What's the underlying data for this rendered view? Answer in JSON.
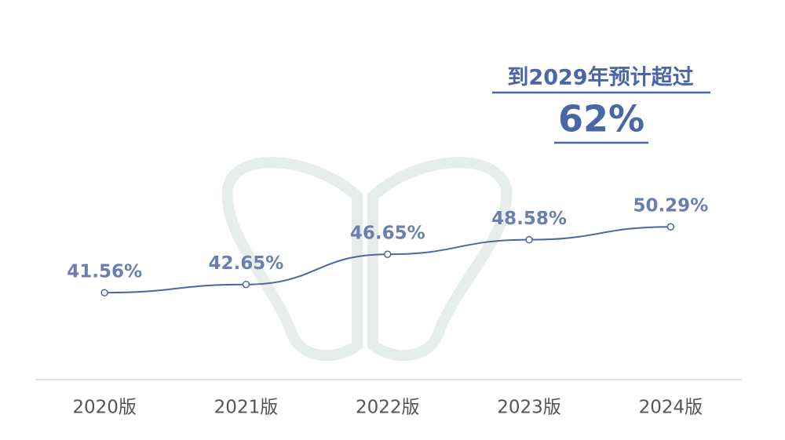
{
  "chart_data": {
    "type": "line",
    "annotation": {
      "text": "到2029年预计超过",
      "value_label": "62%"
    },
    "categories": [
      "2020版",
      "2021版",
      "2022版",
      "2023版",
      "2024版"
    ],
    "values": [
      41.56,
      42.65,
      46.65,
      48.58,
      50.29
    ],
    "value_labels": [
      "41.56%",
      "42.65%",
      "46.65%",
      "48.58%",
      "50.29%"
    ],
    "color": "#4a66a8"
  }
}
